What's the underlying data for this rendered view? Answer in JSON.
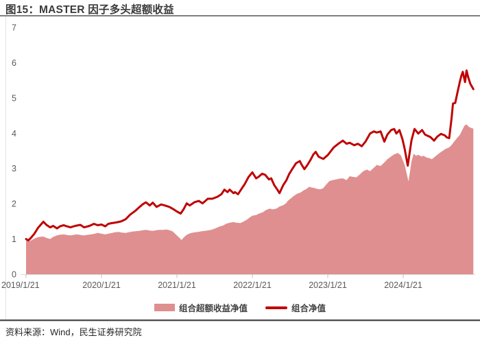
{
  "header": {
    "title": "图15：MASTER 因子多头超额收益"
  },
  "footer": {
    "source": "资料来源：Wind，民生证券研究院"
  },
  "colors": {
    "line": "#c00000",
    "area": "#df8f8f",
    "axis": "#d9d9d9",
    "tick": "#bfbfbf",
    "tick_label": "#595959",
    "title_rule": "#7f7f7f",
    "bottom_rule": "#4d4d4d"
  },
  "chart_data": {
    "type": "area",
    "title": "图15：MASTER 因子多头超额收益",
    "xlabel": "",
    "ylabel": "",
    "x_unit": "years since 2019/1/21",
    "x_range": [
      0,
      5.95
    ],
    "ylim": [
      0,
      7
    ],
    "grid": false,
    "legend_position": "bottom-center",
    "legend": [
      {
        "label": "组合超额收益净值",
        "type": "area"
      },
      {
        "label": "组合净值",
        "type": "line"
      }
    ],
    "x_axis": {
      "tick_positions": [
        0,
        1,
        2,
        3,
        4,
        5
      ],
      "tick_labels": [
        "2019/1/21",
        "2020/1/21",
        "2021/1/21",
        "2022/1/21",
        "2023/1/21",
        "2024/1/21"
      ]
    },
    "y_axis": {
      "ticks": [
        0,
        1,
        2,
        3,
        4,
        5,
        6,
        7
      ]
    },
    "series": [
      {
        "name": "组合超额收益净值",
        "type": "area",
        "color": "#df8f8f",
        "points": [
          [
            0,
            1.0
          ],
          [
            0.05,
            0.94
          ],
          [
            0.09,
            0.99
          ],
          [
            0.14,
            1.04
          ],
          [
            0.18,
            1.06
          ],
          [
            0.23,
            1.07
          ],
          [
            0.27,
            1.03
          ],
          [
            0.32,
            1.0
          ],
          [
            0.36,
            1.06
          ],
          [
            0.41,
            1.1
          ],
          [
            0.45,
            1.12
          ],
          [
            0.5,
            1.13
          ],
          [
            0.55,
            1.11
          ],
          [
            0.59,
            1.1
          ],
          [
            0.64,
            1.12
          ],
          [
            0.68,
            1.13
          ],
          [
            0.73,
            1.11
          ],
          [
            0.77,
            1.1
          ],
          [
            0.82,
            1.12
          ],
          [
            0.86,
            1.13
          ],
          [
            0.91,
            1.15
          ],
          [
            0.95,
            1.17
          ],
          [
            1.0,
            1.15
          ],
          [
            1.05,
            1.13
          ],
          [
            1.09,
            1.15
          ],
          [
            1.14,
            1.17
          ],
          [
            1.18,
            1.19
          ],
          [
            1.23,
            1.2
          ],
          [
            1.27,
            1.18
          ],
          [
            1.32,
            1.17
          ],
          [
            1.36,
            1.19
          ],
          [
            1.41,
            1.21
          ],
          [
            1.45,
            1.22
          ],
          [
            1.5,
            1.23
          ],
          [
            1.55,
            1.25
          ],
          [
            1.59,
            1.26
          ],
          [
            1.64,
            1.24
          ],
          [
            1.68,
            1.23
          ],
          [
            1.73,
            1.25
          ],
          [
            1.77,
            1.26
          ],
          [
            1.82,
            1.26
          ],
          [
            1.86,
            1.27
          ],
          [
            1.9,
            1.25
          ],
          [
            1.94,
            1.22
          ],
          [
            1.97,
            1.16
          ],
          [
            2.01,
            1.08
          ],
          [
            2.05,
            1.0
          ],
          [
            2.06,
            0.97
          ],
          [
            2.09,
            1.04
          ],
          [
            2.12,
            1.1
          ],
          [
            2.15,
            1.14
          ],
          [
            2.19,
            1.17
          ],
          [
            2.24,
            1.19
          ],
          [
            2.28,
            1.2
          ],
          [
            2.33,
            1.22
          ],
          [
            2.37,
            1.23
          ],
          [
            2.43,
            1.25
          ],
          [
            2.47,
            1.27
          ],
          [
            2.52,
            1.31
          ],
          [
            2.56,
            1.35
          ],
          [
            2.61,
            1.38
          ],
          [
            2.65,
            1.43
          ],
          [
            2.7,
            1.46
          ],
          [
            2.75,
            1.48
          ],
          [
            2.79,
            1.46
          ],
          [
            2.84,
            1.45
          ],
          [
            2.88,
            1.49
          ],
          [
            2.93,
            1.55
          ],
          [
            2.97,
            1.62
          ],
          [
            3.0,
            1.66
          ],
          [
            3.05,
            1.68
          ],
          [
            3.09,
            1.72
          ],
          [
            3.14,
            1.76
          ],
          [
            3.18,
            1.82
          ],
          [
            3.23,
            1.86
          ],
          [
            3.27,
            1.84
          ],
          [
            3.32,
            1.86
          ],
          [
            3.36,
            1.92
          ],
          [
            3.41,
            1.96
          ],
          [
            3.45,
            2.02
          ],
          [
            3.47,
            2.08
          ],
          [
            3.51,
            2.15
          ],
          [
            3.55,
            2.22
          ],
          [
            3.59,
            2.28
          ],
          [
            3.64,
            2.32
          ],
          [
            3.68,
            2.38
          ],
          [
            3.72,
            2.42
          ],
          [
            3.75,
            2.48
          ],
          [
            3.79,
            2.46
          ],
          [
            3.83,
            2.44
          ],
          [
            3.86,
            2.42
          ],
          [
            3.9,
            2.41
          ],
          [
            3.94,
            2.44
          ],
          [
            3.97,
            2.52
          ],
          [
            4.02,
            2.64
          ],
          [
            4.06,
            2.67
          ],
          [
            4.11,
            2.69
          ],
          [
            4.15,
            2.71
          ],
          [
            4.2,
            2.72
          ],
          [
            4.25,
            2.67
          ],
          [
            4.29,
            2.78
          ],
          [
            4.34,
            2.76
          ],
          [
            4.38,
            2.75
          ],
          [
            4.43,
            2.84
          ],
          [
            4.47,
            2.92
          ],
          [
            4.52,
            2.97
          ],
          [
            4.56,
            2.92
          ],
          [
            4.61,
            3.02
          ],
          [
            4.65,
            3.1
          ],
          [
            4.7,
            3.07
          ],
          [
            4.75,
            3.17
          ],
          [
            4.79,
            3.26
          ],
          [
            4.84,
            3.34
          ],
          [
            4.88,
            3.4
          ],
          [
            4.93,
            3.44
          ],
          [
            4.97,
            3.37
          ],
          [
            5.02,
            3.1
          ],
          [
            5.07,
            2.63
          ],
          [
            5.11,
            3.2
          ],
          [
            5.14,
            3.42
          ],
          [
            5.17,
            3.36
          ],
          [
            5.2,
            3.39
          ],
          [
            5.24,
            3.34
          ],
          [
            5.27,
            3.36
          ],
          [
            5.31,
            3.31
          ],
          [
            5.35,
            3.29
          ],
          [
            5.38,
            3.26
          ],
          [
            5.43,
            3.35
          ],
          [
            5.47,
            3.42
          ],
          [
            5.51,
            3.48
          ],
          [
            5.56,
            3.55
          ],
          [
            5.61,
            3.6
          ],
          [
            5.64,
            3.66
          ],
          [
            5.66,
            3.72
          ],
          [
            5.69,
            3.8
          ],
          [
            5.72,
            3.88
          ],
          [
            5.75,
            3.95
          ],
          [
            5.77,
            4.03
          ],
          [
            5.81,
            4.21
          ],
          [
            5.84,
            4.25
          ],
          [
            5.87,
            4.18
          ],
          [
            5.9,
            4.15
          ],
          [
            5.93,
            4.13
          ]
        ]
      },
      {
        "name": "组合净值",
        "type": "line",
        "color": "#c00000",
        "points": [
          [
            0,
            1.0
          ],
          [
            0.03,
            0.96
          ],
          [
            0.06,
            1.02
          ],
          [
            0.11,
            1.15
          ],
          [
            0.16,
            1.32
          ],
          [
            0.23,
            1.49
          ],
          [
            0.27,
            1.4
          ],
          [
            0.32,
            1.33
          ],
          [
            0.36,
            1.37
          ],
          [
            0.41,
            1.3
          ],
          [
            0.45,
            1.36
          ],
          [
            0.5,
            1.39
          ],
          [
            0.54,
            1.36
          ],
          [
            0.59,
            1.33
          ],
          [
            0.65,
            1.37
          ],
          [
            0.72,
            1.4
          ],
          [
            0.77,
            1.33
          ],
          [
            0.84,
            1.37
          ],
          [
            0.9,
            1.43
          ],
          [
            0.95,
            1.39
          ],
          [
            1.0,
            1.41
          ],
          [
            1.05,
            1.36
          ],
          [
            1.09,
            1.43
          ],
          [
            1.14,
            1.45
          ],
          [
            1.2,
            1.47
          ],
          [
            1.26,
            1.5
          ],
          [
            1.32,
            1.56
          ],
          [
            1.38,
            1.69
          ],
          [
            1.45,
            1.8
          ],
          [
            1.5,
            1.9
          ],
          [
            1.55,
            1.99
          ],
          [
            1.59,
            2.04
          ],
          [
            1.64,
            1.95
          ],
          [
            1.68,
            2.03
          ],
          [
            1.73,
            1.91
          ],
          [
            1.79,
            1.98
          ],
          [
            1.84,
            1.95
          ],
          [
            1.9,
            1.91
          ],
          [
            1.95,
            1.85
          ],
          [
            2.0,
            1.78
          ],
          [
            2.05,
            1.72
          ],
          [
            2.09,
            1.85
          ],
          [
            2.13,
            2.01
          ],
          [
            2.17,
            1.95
          ],
          [
            2.23,
            2.04
          ],
          [
            2.29,
            2.08
          ],
          [
            2.34,
            2.01
          ],
          [
            2.41,
            2.14
          ],
          [
            2.47,
            2.14
          ],
          [
            2.54,
            2.2
          ],
          [
            2.59,
            2.27
          ],
          [
            2.63,
            2.4
          ],
          [
            2.67,
            2.33
          ],
          [
            2.7,
            2.4
          ],
          [
            2.75,
            2.3
          ],
          [
            2.77,
            2.33
          ],
          [
            2.81,
            2.27
          ],
          [
            2.85,
            2.4
          ],
          [
            2.9,
            2.56
          ],
          [
            2.95,
            2.76
          ],
          [
            3.0,
            2.89
          ],
          [
            3.05,
            2.72
          ],
          [
            3.08,
            2.76
          ],
          [
            3.13,
            2.85
          ],
          [
            3.17,
            2.82
          ],
          [
            3.22,
            2.69
          ],
          [
            3.25,
            2.72
          ],
          [
            3.29,
            2.53
          ],
          [
            3.34,
            2.37
          ],
          [
            3.36,
            2.3
          ],
          [
            3.41,
            2.53
          ],
          [
            3.45,
            2.66
          ],
          [
            3.49,
            2.85
          ],
          [
            3.54,
            3.02
          ],
          [
            3.58,
            3.15
          ],
          [
            3.63,
            3.21
          ],
          [
            3.65,
            3.12
          ],
          [
            3.69,
            2.98
          ],
          [
            3.73,
            3.1
          ],
          [
            3.77,
            3.24
          ],
          [
            3.81,
            3.4
          ],
          [
            3.84,
            3.47
          ],
          [
            3.88,
            3.33
          ],
          [
            3.94,
            3.27
          ],
          [
            4.0,
            3.38
          ],
          [
            4.08,
            3.6
          ],
          [
            4.14,
            3.7
          ],
          [
            4.2,
            3.79
          ],
          [
            4.25,
            3.7
          ],
          [
            4.29,
            3.73
          ],
          [
            4.35,
            3.66
          ],
          [
            4.4,
            3.7
          ],
          [
            4.45,
            3.63
          ],
          [
            4.5,
            3.76
          ],
          [
            4.56,
            3.99
          ],
          [
            4.61,
            4.05
          ],
          [
            4.65,
            4.02
          ],
          [
            4.7,
            4.05
          ],
          [
            4.75,
            3.76
          ],
          [
            4.79,
            3.96
          ],
          [
            4.84,
            4.09
          ],
          [
            4.88,
            4.12
          ],
          [
            4.91,
            3.99
          ],
          [
            4.95,
            4.09
          ],
          [
            4.99,
            3.83
          ],
          [
            5.02,
            3.55
          ],
          [
            5.06,
            3.08
          ],
          [
            5.11,
            3.8
          ],
          [
            5.15,
            4.12
          ],
          [
            5.2,
            3.99
          ],
          [
            5.25,
            4.09
          ],
          [
            5.29,
            3.96
          ],
          [
            5.33,
            3.92
          ],
          [
            5.36,
            3.89
          ],
          [
            5.41,
            3.79
          ],
          [
            5.45,
            3.9
          ],
          [
            5.5,
            3.98
          ],
          [
            5.55,
            3.94
          ],
          [
            5.58,
            3.88
          ],
          [
            5.61,
            3.86
          ],
          [
            5.64,
            4.4
          ],
          [
            5.66,
            4.84
          ],
          [
            5.69,
            4.86
          ],
          [
            5.72,
            5.16
          ],
          [
            5.75,
            5.45
          ],
          [
            5.77,
            5.62
          ],
          [
            5.79,
            5.74
          ],
          [
            5.82,
            5.45
          ],
          [
            5.84,
            5.78
          ],
          [
            5.86,
            5.6
          ],
          [
            5.89,
            5.4
          ],
          [
            5.93,
            5.25
          ]
        ]
      }
    ]
  }
}
